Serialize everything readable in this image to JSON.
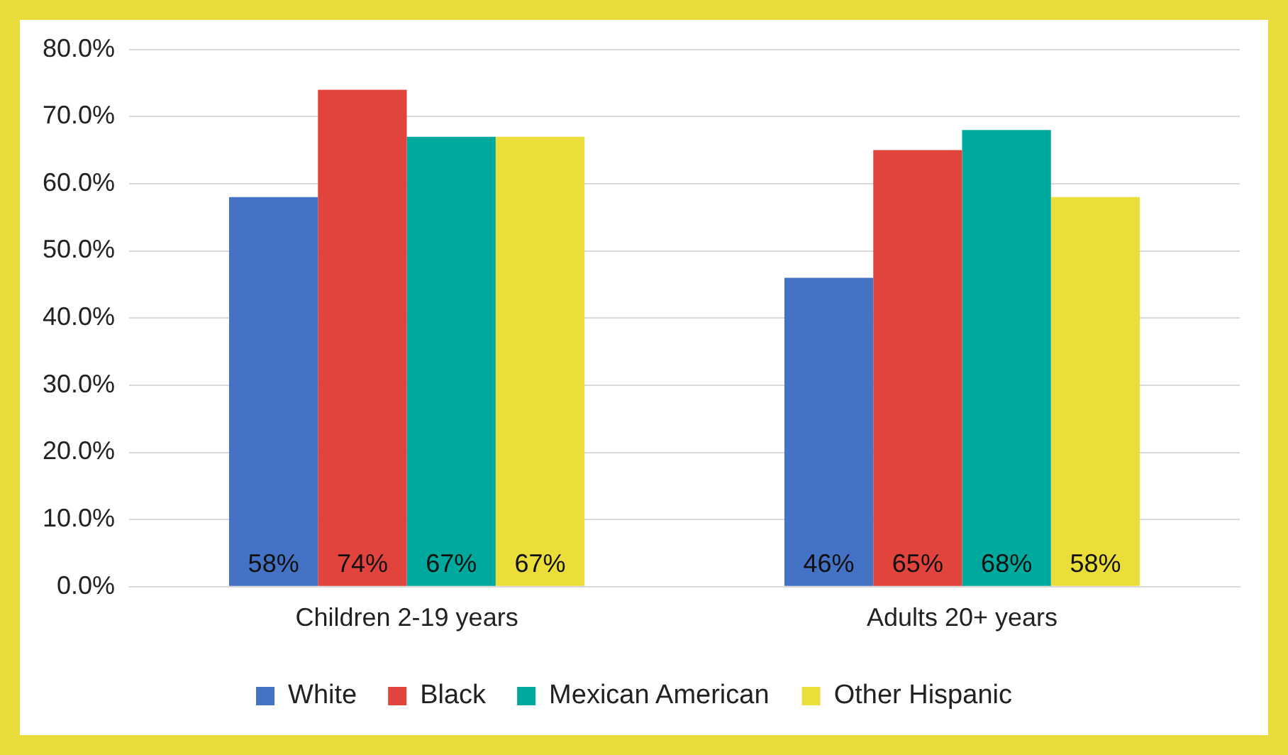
{
  "chart_data": {
    "type": "bar",
    "categories": [
      "Children 2-19 years",
      "Adults 20+ years"
    ],
    "series": [
      {
        "name": "White",
        "color": "#4472c4",
        "values": [
          58,
          46
        ],
        "value_labels": [
          "58%",
          "46%"
        ]
      },
      {
        "name": "Black",
        "color": "#e0443c",
        "values": [
          74,
          65
        ],
        "value_labels": [
          "74%",
          "65%"
        ]
      },
      {
        "name": "Mexican American",
        "color": "#00a99d",
        "values": [
          67,
          68
        ],
        "value_labels": [
          "67%",
          "68%"
        ]
      },
      {
        "name": "Other Hispanic",
        "color": "#ebdd3a",
        "values": [
          67,
          58
        ],
        "value_labels": [
          "67%",
          "58%"
        ]
      }
    ],
    "ylim": [
      0,
      80
    ],
    "yticks": [
      {
        "value": 0,
        "label": "0.0%"
      },
      {
        "value": 10,
        "label": "10.0%"
      },
      {
        "value": 20,
        "label": "20.0%"
      },
      {
        "value": 30,
        "label": "30.0%"
      },
      {
        "value": 40,
        "label": "40.0%"
      },
      {
        "value": 50,
        "label": "50.0%"
      },
      {
        "value": 60,
        "label": "60.0%"
      },
      {
        "value": 70,
        "label": "70.0%"
      },
      {
        "value": 80,
        "label": "80.0%"
      }
    ],
    "grid": "y",
    "legend": "bottom"
  }
}
